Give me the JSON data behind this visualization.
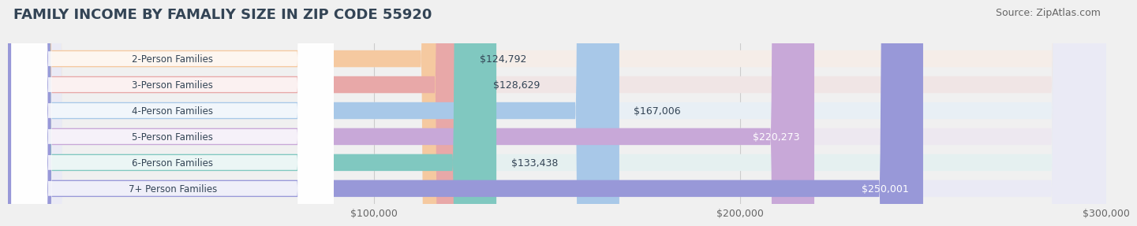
{
  "title": "FAMILY INCOME BY FAMALIY SIZE IN ZIP CODE 55920",
  "source": "Source: ZipAtlas.com",
  "categories": [
    "2-Person Families",
    "3-Person Families",
    "4-Person Families",
    "5-Person Families",
    "6-Person Families",
    "7+ Person Families"
  ],
  "values": [
    124792,
    128629,
    167006,
    220273,
    133438,
    250001
  ],
  "labels": [
    "$124,792",
    "$128,629",
    "$167,006",
    "$220,273",
    "$133,438",
    "$250,001"
  ],
  "bar_colors": [
    "#f5c9a0",
    "#e8a8a8",
    "#a8c8e8",
    "#c8a8d8",
    "#80c8c0",
    "#9898d8"
  ],
  "bar_bg_colors": [
    "#f5ede8",
    "#f0e5e5",
    "#e8eff5",
    "#ede8f0",
    "#e5f0f0",
    "#eaeaf5"
  ],
  "label_colors": [
    "#555555",
    "#555555",
    "#555555",
    "#ffffff",
    "#555555",
    "#ffffff"
  ],
  "xlim": [
    0,
    300000
  ],
  "xticks": [
    0,
    100000,
    200000,
    300000
  ],
  "xtick_labels": [
    "",
    "$100,000",
    "$200,000",
    "$300,000"
  ],
  "background_color": "#f0f0f0",
  "title_color": "#334455",
  "category_text_color": "#334455",
  "bar_height": 0.65,
  "title_fontsize": 13,
  "source_fontsize": 9,
  "tick_fontsize": 9,
  "label_fontsize": 9,
  "cat_fontsize": 8.5
}
